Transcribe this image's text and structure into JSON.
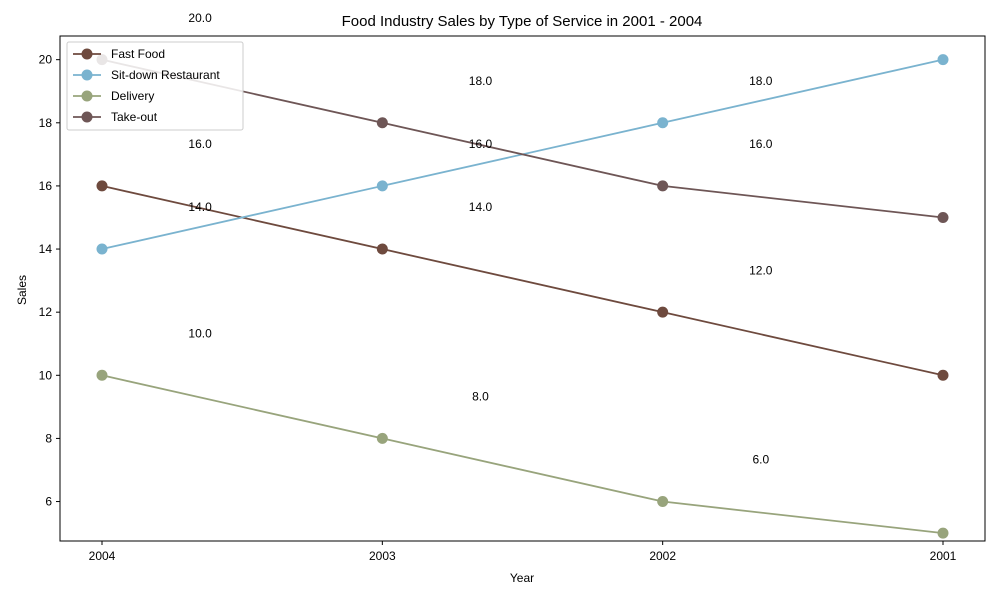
{
  "chart_data": {
    "type": "line",
    "title": "Food Industry Sales by Type of Service in 2001 - 2004",
    "xlabel": "Year",
    "ylabel": "Sales",
    "categories": [
      "2004",
      "2003",
      "2002",
      "2001"
    ],
    "ylim": [
      4.75,
      20.75
    ],
    "yticks": [
      6,
      8,
      10,
      12,
      14,
      16,
      18,
      20
    ],
    "legend_position": "top-left",
    "grid": false,
    "series": [
      {
        "name": "Fast Food",
        "values": [
          16,
          14,
          12,
          10
        ],
        "color": "#6e4a3e"
      },
      {
        "name": "Sit-down Restaurant",
        "values": [
          14,
          16,
          18,
          20
        ],
        "color": "#7ab3cf"
      },
      {
        "name": "Delivery",
        "values": [
          10,
          8,
          6,
          5
        ],
        "color": "#98a47c"
      },
      {
        "name": "Take-out",
        "values": [
          20,
          18,
          16,
          15
        ],
        "color": "#6e5656"
      }
    ],
    "annotations": [
      {
        "text": "20.0",
        "x": 0.35,
        "y": 21.2
      },
      {
        "text": "16.0",
        "x": 0.35,
        "y": 17.2
      },
      {
        "text": "14.0",
        "x": 0.35,
        "y": 15.2
      },
      {
        "text": "10.0",
        "x": 0.35,
        "y": 11.2
      },
      {
        "text": "18.0",
        "x": 1.35,
        "y": 19.2
      },
      {
        "text": "16.0",
        "x": 1.35,
        "y": 17.2
      },
      {
        "text": "14.0",
        "x": 1.35,
        "y": 15.2
      },
      {
        "text": "8.0",
        "x": 1.35,
        "y": 9.2
      },
      {
        "text": "18.0",
        "x": 2.35,
        "y": 19.2
      },
      {
        "text": "16.0",
        "x": 2.35,
        "y": 17.2
      },
      {
        "text": "12.0",
        "x": 2.35,
        "y": 13.2
      },
      {
        "text": "6.0",
        "x": 2.35,
        "y": 7.2
      }
    ]
  }
}
